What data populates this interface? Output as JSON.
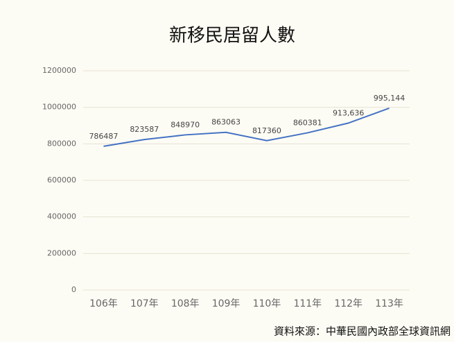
{
  "chart_data": {
    "type": "line",
    "title": "新移民居留人數",
    "categories": [
      "106年",
      "107年",
      "108年",
      "109年",
      "110年",
      "111年",
      "112年",
      "113年"
    ],
    "series": [
      {
        "name": "新移民居留人數",
        "color": "#4472c4",
        "values": [
          786487,
          823587,
          848970,
          863063,
          817360,
          860381,
          913636,
          995144
        ],
        "value_labels": [
          "786487",
          "823587",
          "848970",
          "863063",
          "817360",
          "860381",
          "913,636",
          "995,144"
        ]
      }
    ],
    "ylim": [
      0,
      1200000
    ],
    "yticks": [
      0,
      200000,
      400000,
      600000,
      800000,
      1000000,
      1200000
    ],
    "grid": true,
    "source": "資料來源：中華民國內政部全球資訊網"
  }
}
